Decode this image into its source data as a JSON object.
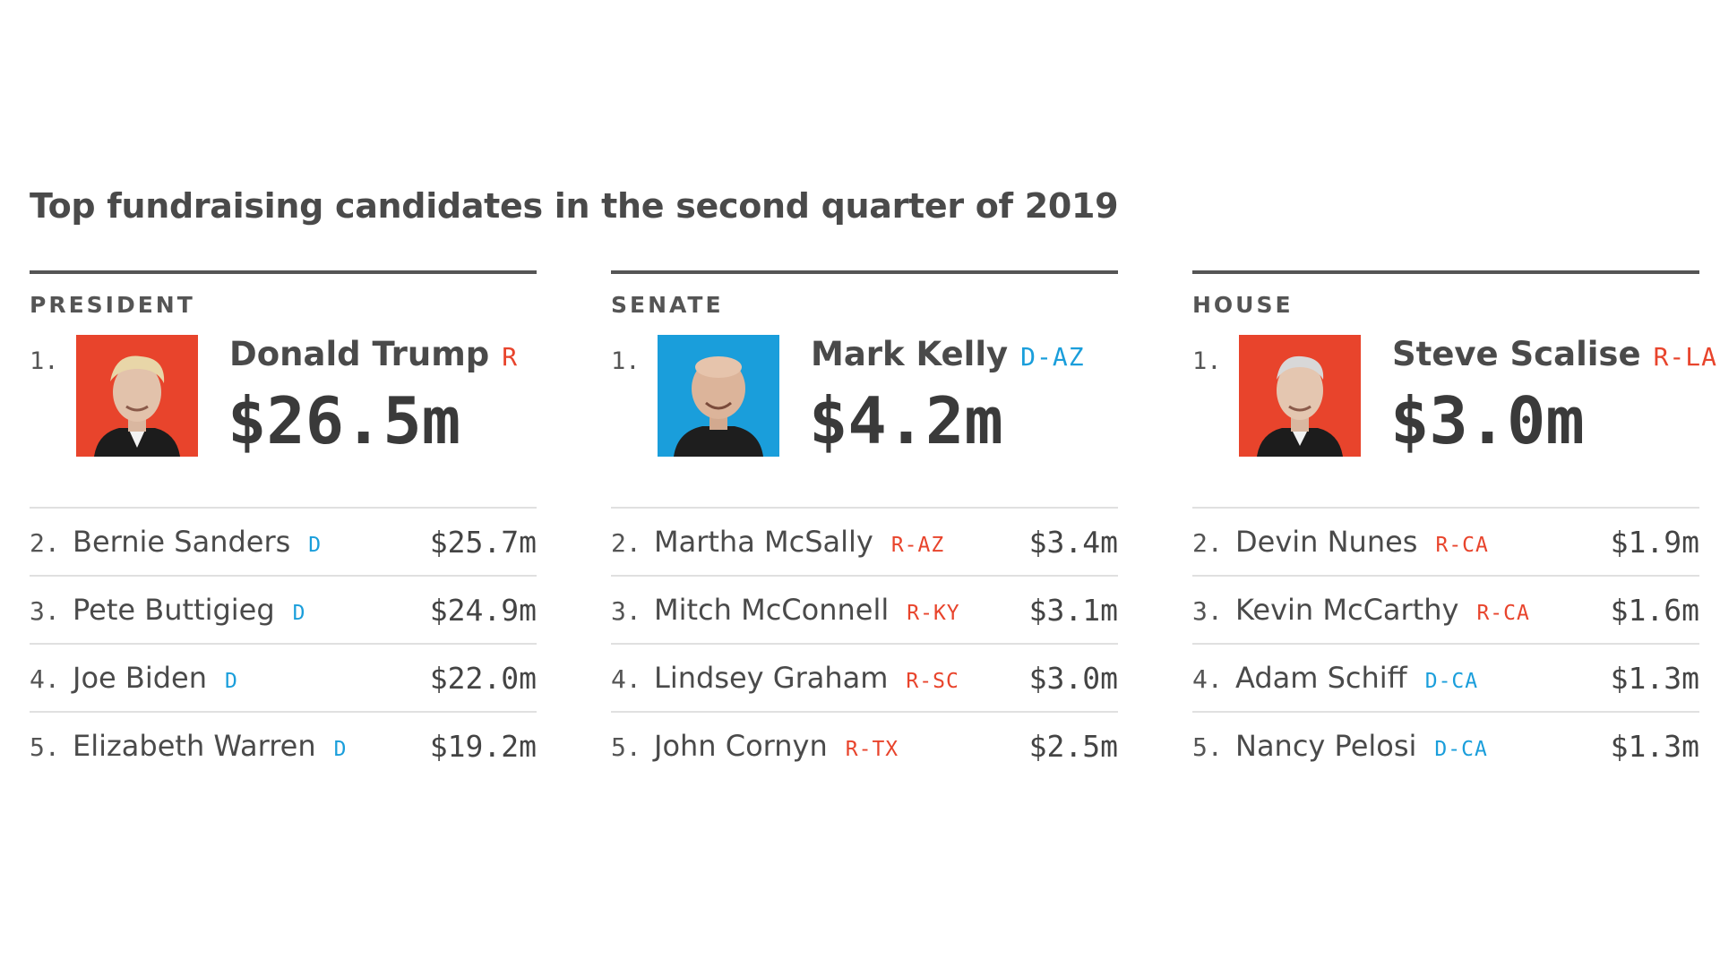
{
  "title": "Top fundraising candidates in the second quarter of 2019",
  "colors": {
    "dem": "#1a9edb",
    "rep": "#e8442c",
    "text": "#444444"
  },
  "columns": [
    {
      "label": "PRESIDENT",
      "leader": {
        "rank": "1.",
        "name": "Donald Trump",
        "party": "R",
        "amount": "$26.5m",
        "photo_bg": "#e8442c"
      },
      "rows": [
        {
          "rank": "2.",
          "name": "Bernie Sanders",
          "party": "D",
          "amount": "$25.7m"
        },
        {
          "rank": "3.",
          "name": "Pete Buttigieg",
          "party": "D",
          "amount": "$24.9m"
        },
        {
          "rank": "4.",
          "name": "Joe Biden",
          "party": "D",
          "amount": "$22.0m"
        },
        {
          "rank": "5.",
          "name": "Elizabeth Warren",
          "party": "D",
          "amount": "$19.2m"
        }
      ]
    },
    {
      "label": "SENATE",
      "leader": {
        "rank": "1.",
        "name": "Mark Kelly",
        "party": "D-AZ",
        "amount": "$4.2m",
        "photo_bg": "#1a9edb"
      },
      "rows": [
        {
          "rank": "2.",
          "name": "Martha McSally",
          "party": "R-AZ",
          "amount": "$3.4m"
        },
        {
          "rank": "3.",
          "name": "Mitch McConnell",
          "party": "R-KY",
          "amount": "$3.1m"
        },
        {
          "rank": "4.",
          "name": "Lindsey Graham",
          "party": "R-SC",
          "amount": "$3.0m"
        },
        {
          "rank": "5.",
          "name": "John Cornyn",
          "party": "R-TX",
          "amount": "$2.5m"
        }
      ]
    },
    {
      "label": "HOUSE",
      "leader": {
        "rank": "1.",
        "name": "Steve Scalise",
        "party": "R-LA",
        "amount": "$3.0m",
        "photo_bg": "#e8442c"
      },
      "rows": [
        {
          "rank": "2.",
          "name": "Devin Nunes",
          "party": "R-CA",
          "amount": "$1.9m"
        },
        {
          "rank": "3.",
          "name": "Kevin McCarthy",
          "party": "R-CA",
          "amount": "$1.6m"
        },
        {
          "rank": "4.",
          "name": "Adam Schiff",
          "party": "D-CA",
          "amount": "$1.3m"
        },
        {
          "rank": "5.",
          "name": "Nancy Pelosi",
          "party": "D-CA",
          "amount": "$1.3m"
        }
      ]
    }
  ]
}
